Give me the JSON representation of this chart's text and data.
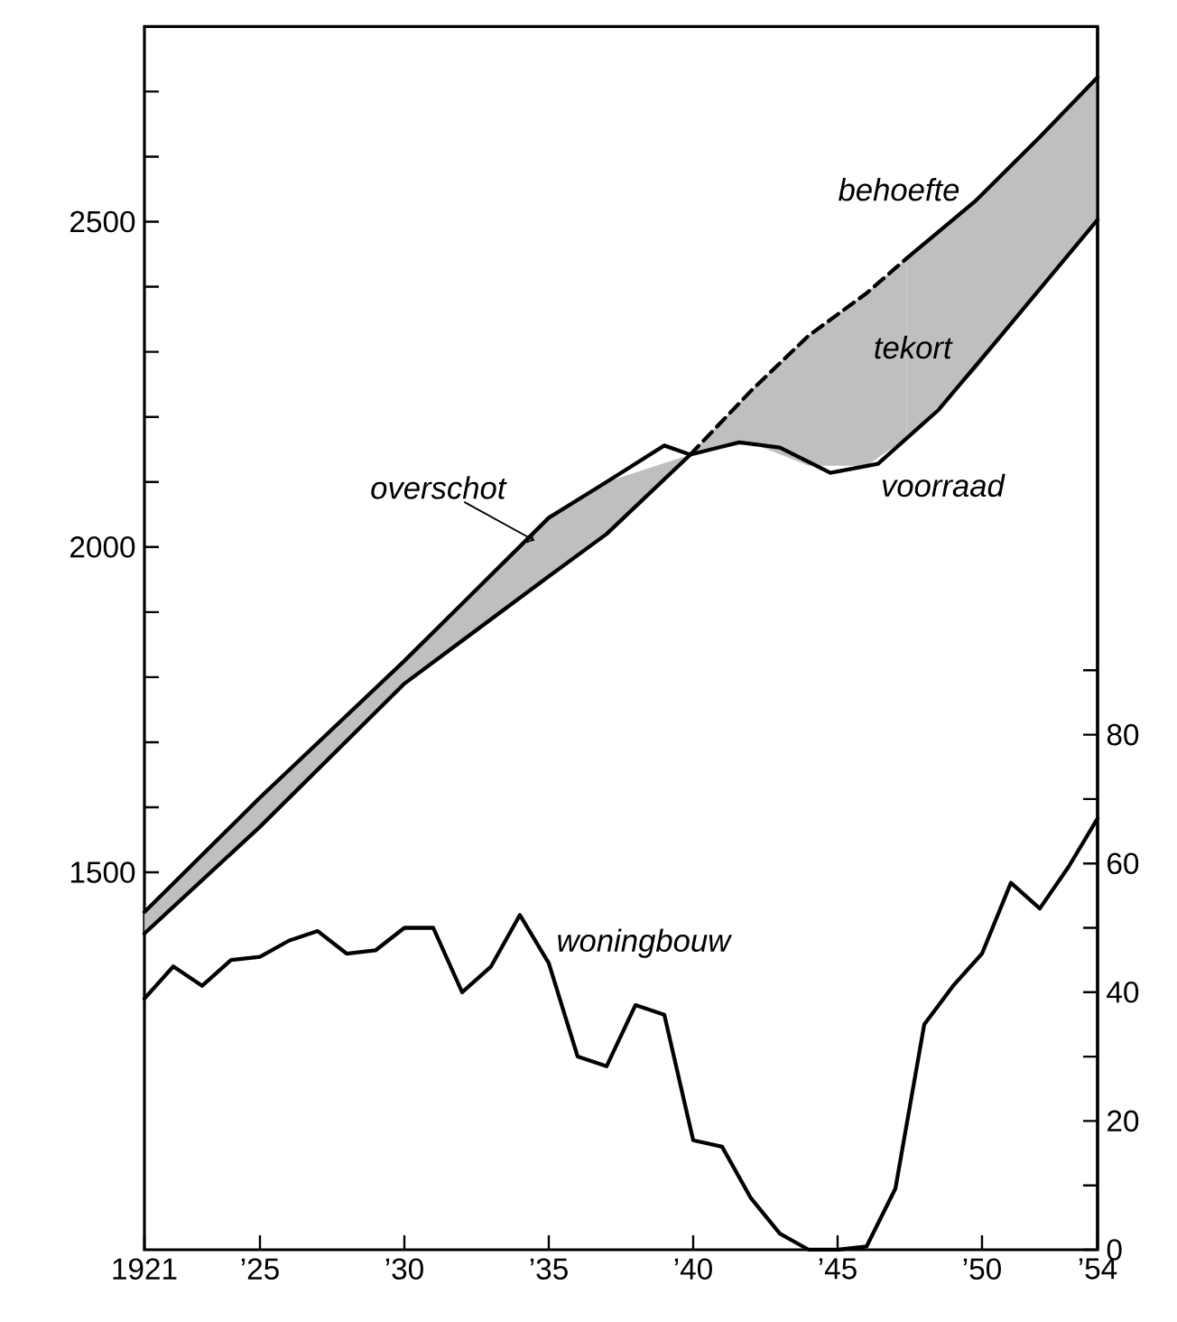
{
  "chart_data": {
    "type": "line",
    "xlim": [
      1921,
      1954
    ],
    "xticks": [
      1921,
      {
        "value": 1925,
        "label": "’25"
      },
      {
        "value": 1930,
        "label": "’30"
      },
      {
        "value": 1935,
        "label": "’35"
      },
      {
        "value": 1940,
        "label": "’40"
      },
      {
        "value": 1945,
        "label": "’45"
      },
      {
        "value": 1950,
        "label": "’50"
      },
      {
        "value": 1954,
        "label": "’54"
      }
    ],
    "ylim": [
      920,
      2800
    ],
    "yticks": [
      1500,
      {
        "value": 1600,
        "label": null
      },
      {
        "value": 1700,
        "label": null
      },
      {
        "value": 1800,
        "label": null
      },
      {
        "value": 1900,
        "label": null
      },
      2000,
      {
        "value": 2100,
        "label": null
      },
      {
        "value": 2200,
        "label": null
      },
      {
        "value": 2300,
        "label": null
      },
      {
        "value": 2400,
        "label": null
      },
      2500,
      {
        "value": 2600,
        "label": null
      },
      {
        "value": 2700,
        "label": null
      }
    ],
    "y2lim": [
      0,
      190
    ],
    "y2ticks": [
      0,
      {
        "value": 10,
        "label": null
      },
      20,
      {
        "value": 30,
        "label": null
      },
      40,
      {
        "value": 50,
        "label": null
      },
      60,
      {
        "value": 70,
        "label": null
      },
      80,
      {
        "value": 90,
        "label": null
      }
    ],
    "series": [
      {
        "name": "voorraad",
        "color": "#000000",
        "x": [
          1921,
          1925,
          1930,
          1935,
          1937,
          1939,
          1939.9,
          1941.6,
          1943,
          1944.75,
          1946.4,
          1948.5,
          1950.6,
          1954
        ],
        "values": [
          1439,
          1615,
          1825,
          2045,
          2100,
          2156,
          2142,
          2161,
          2153,
          2114,
          2128,
          2211,
          2322,
          2503
        ]
      },
      {
        "color": "#000000",
        "x": [
          1921,
          1925,
          1930,
          1935,
          1937,
          1939.9
        ],
        "values": [
          1406,
          1570,
          1790,
          1955,
          2020,
          2142
        ],
        "lower": [
          1406,
          1570,
          1790,
          1955,
          2020,
          2142
        ],
        "upper": [
          1439,
          1615,
          1825,
          2045,
          2100,
          2142
        ]
      },
      {
        "color": "#000000",
        "line_style": "dashed",
        "x": [
          1939.9,
          1942,
          1944,
          1946,
          1947.4
        ],
        "values": [
          2142,
          2240,
          2325,
          2390,
          2444
        ],
        "lower": [
          2142,
          2160,
          2125,
          2125,
          2168
        ],
        "upper": [
          2142,
          2240,
          2325,
          2390,
          2444
        ]
      },
      {
        "name": "behoefte",
        "color": "#000000",
        "x": [
          1947.4,
          1949.75,
          1952,
          1954
        ],
        "values": [
          2444,
          2531,
          2630,
          2722
        ],
        "lower": [
          2168,
          2270,
          2396,
          2503
        ],
        "upper": [
          2444,
          2531,
          2630,
          2722
        ]
      },
      {
        "name": "woningbouw",
        "color": "#000000",
        "axis": "y2",
        "x": [
          1921,
          1922,
          1923,
          1924,
          1925,
          1926,
          1927,
          1928,
          1929,
          1930,
          1931,
          1932,
          1933,
          1934,
          1935,
          1936,
          1937,
          1938,
          1939,
          1940,
          1941,
          1942,
          1943,
          1944,
          1945,
          1946,
          1947,
          1948,
          1949,
          1950,
          1951,
          1952,
          1953,
          1954
        ],
        "values": [
          39,
          44,
          41,
          45,
          45.5,
          48,
          49.5,
          46,
          46.5,
          50,
          50,
          40,
          44,
          52,
          44.5,
          30,
          28.5,
          38,
          36.5,
          17,
          16,
          8,
          2.5,
          0,
          0,
          0.5,
          9.5,
          35,
          41,
          46,
          57,
          53,
          59.5,
          67
        ]
      }
    ],
    "annotations": [
      {
        "text": "overschot",
        "x": 1934.5,
        "y": 2010
      },
      {
        "text": "tekort",
        "x": 1947.6,
        "y": 2307
      }
    ]
  }
}
